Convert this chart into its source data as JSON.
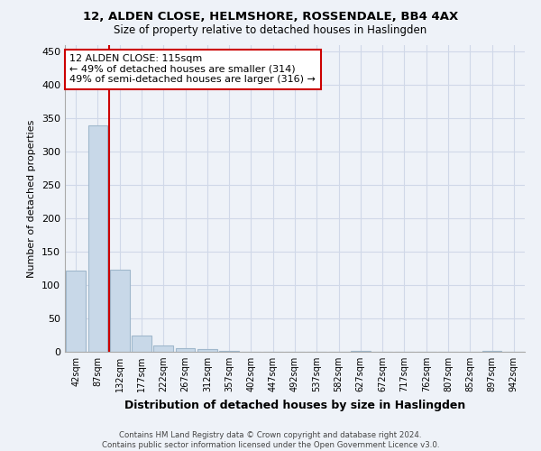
{
  "title1": "12, ALDEN CLOSE, HELMSHORE, ROSSENDALE, BB4 4AX",
  "title2": "Size of property relative to detached houses in Haslingden",
  "xlabel": "Distribution of detached houses by size in Haslingden",
  "ylabel": "Number of detached properties",
  "bin_labels": [
    "42sqm",
    "87sqm",
    "132sqm",
    "177sqm",
    "222sqm",
    "267sqm",
    "312sqm",
    "357sqm",
    "402sqm",
    "447sqm",
    "492sqm",
    "537sqm",
    "582sqm",
    "627sqm",
    "672sqm",
    "717sqm",
    "762sqm",
    "807sqm",
    "852sqm",
    "897sqm",
    "942sqm"
  ],
  "bar_values": [
    122,
    340,
    123,
    25,
    10,
    6,
    4,
    1,
    0,
    0,
    0,
    0,
    0,
    1,
    0,
    0,
    0,
    0,
    0,
    2,
    0
  ],
  "bar_color": "#c8d8e8",
  "bar_edge_color": "#a0b8cc",
  "grid_color": "#d0d8e8",
  "background_color": "#eef2f8",
  "red_line_bin": 2,
  "annotation_text": "12 ALDEN CLOSE: 115sqm\n← 49% of detached houses are smaller (314)\n49% of semi-detached houses are larger (316) →",
  "annotation_box_color": "#ffffff",
  "annotation_edge_color": "#cc0000",
  "red_line_color": "#cc0000",
  "ylim": [
    0,
    460
  ],
  "yticks": [
    0,
    50,
    100,
    150,
    200,
    250,
    300,
    350,
    400,
    450
  ],
  "footnote1": "Contains HM Land Registry data © Crown copyright and database right 2024.",
  "footnote2": "Contains public sector information licensed under the Open Government Licence v3.0."
}
